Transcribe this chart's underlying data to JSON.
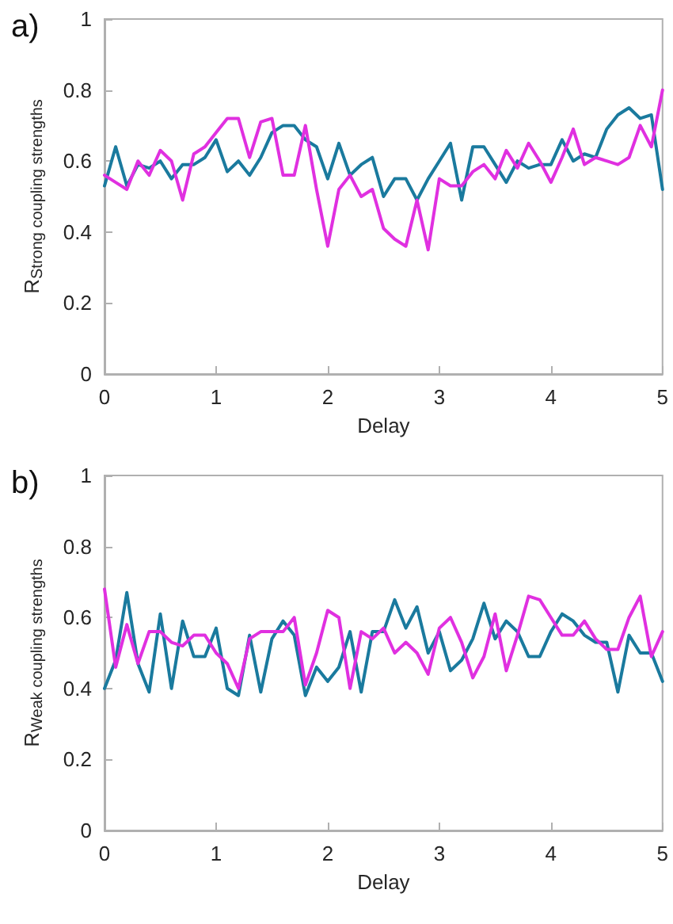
{
  "chart_data": [
    {
      "type": "line",
      "title": "a)",
      "xlabel": "Delay",
      "ylabel": "R$_{Strong coupling strengths}$",
      "xlim": [
        0,
        5
      ],
      "ylim": [
        0,
        1
      ],
      "xticks": [
        0,
        1,
        2,
        3,
        4,
        5
      ],
      "yticks": [
        0,
        0.2,
        0.4,
        0.6,
        0.8,
        1
      ],
      "grid": false,
      "marker": "none",
      "line_style": "solid",
      "x": [
        0,
        0.1,
        0.2,
        0.3,
        0.4,
        0.5,
        0.6,
        0.7,
        0.8,
        0.9,
        1,
        1.1,
        1.2,
        1.3,
        1.4,
        1.5,
        1.6,
        1.7,
        1.8,
        1.9,
        2,
        2.1,
        2.2,
        2.3,
        2.4,
        2.5,
        2.6,
        2.7,
        2.8,
        2.9,
        3,
        3.1,
        3.2,
        3.3,
        3.4,
        3.5,
        3.6,
        3.7,
        3.8,
        3.9,
        4,
        4.1,
        4.2,
        4.3,
        4.4,
        4.5,
        4.6,
        4.7,
        4.8,
        4.9,
        5
      ],
      "series": [
        {
          "color": "#1a7a9e",
          "values": [
            0.53,
            0.64,
            0.53,
            0.59,
            0.58,
            0.6,
            0.55,
            0.59,
            0.59,
            0.61,
            0.66,
            0.57,
            0.6,
            0.56,
            0.61,
            0.68,
            0.7,
            0.7,
            0.66,
            0.64,
            0.55,
            0.65,
            0.56,
            0.59,
            0.61,
            0.5,
            0.55,
            0.55,
            0.49,
            0.55,
            0.6,
            0.65,
            0.49,
            0.64,
            0.64,
            0.59,
            0.54,
            0.6,
            0.58,
            0.59,
            0.59,
            0.66,
            0.6,
            0.62,
            0.61,
            0.69,
            0.73,
            0.75,
            0.72,
            0.73,
            0.52
          ]
        },
        {
          "color": "#e030e0",
          "values": [
            0.56,
            0.54,
            0.52,
            0.6,
            0.56,
            0.63,
            0.6,
            0.49,
            0.62,
            0.64,
            0.68,
            0.72,
            0.72,
            0.61,
            0.71,
            0.72,
            0.56,
            0.56,
            0.7,
            0.52,
            0.36,
            0.52,
            0.56,
            0.5,
            0.52,
            0.41,
            0.38,
            0.36,
            0.49,
            0.35,
            0.55,
            0.53,
            0.53,
            0.57,
            0.59,
            0.55,
            0.63,
            0.58,
            0.65,
            0.6,
            0.54,
            0.61,
            0.69,
            0.59,
            0.61,
            0.6,
            0.59,
            0.61,
            0.7,
            0.64,
            0.8
          ]
        }
      ]
    },
    {
      "type": "line",
      "title": "b)",
      "xlabel": "Delay",
      "ylabel": "R$_{Weak coupling strengths}$",
      "xlim": [
        0,
        5
      ],
      "ylim": [
        0,
        1
      ],
      "xticks": [
        0,
        1,
        2,
        3,
        4,
        5
      ],
      "yticks": [
        0,
        0.2,
        0.4,
        0.6,
        0.8,
        1
      ],
      "grid": false,
      "marker": "none",
      "line_style": "solid",
      "x": [
        0,
        0.1,
        0.2,
        0.3,
        0.4,
        0.5,
        0.6,
        0.7,
        0.8,
        0.9,
        1,
        1.1,
        1.2,
        1.3,
        1.4,
        1.5,
        1.6,
        1.7,
        1.8,
        1.9,
        2,
        2.1,
        2.2,
        2.3,
        2.4,
        2.5,
        2.6,
        2.7,
        2.8,
        2.9,
        3,
        3.1,
        3.2,
        3.3,
        3.4,
        3.5,
        3.6,
        3.7,
        3.8,
        3.9,
        4,
        4.1,
        4.2,
        4.3,
        4.4,
        4.5,
        4.6,
        4.7,
        4.8,
        4.9,
        5
      ],
      "series": [
        {
          "color": "#1a7a9e",
          "values": [
            0.4,
            0.48,
            0.67,
            0.47,
            0.39,
            0.61,
            0.4,
            0.59,
            0.49,
            0.49,
            0.57,
            0.4,
            0.38,
            0.55,
            0.39,
            0.54,
            0.59,
            0.55,
            0.38,
            0.46,
            0.42,
            0.46,
            0.56,
            0.39,
            0.56,
            0.56,
            0.65,
            0.57,
            0.63,
            0.5,
            0.56,
            0.45,
            0.48,
            0.54,
            0.64,
            0.54,
            0.59,
            0.56,
            0.49,
            0.49,
            0.56,
            0.61,
            0.59,
            0.55,
            0.53,
            0.53,
            0.39,
            0.55,
            0.5,
            0.5,
            0.42
          ]
        },
        {
          "color": "#e030e0",
          "values": [
            0.68,
            0.46,
            0.58,
            0.47,
            0.56,
            0.56,
            0.53,
            0.52,
            0.55,
            0.55,
            0.5,
            0.47,
            0.4,
            0.54,
            0.56,
            0.56,
            0.56,
            0.6,
            0.41,
            0.5,
            0.62,
            0.6,
            0.4,
            0.56,
            0.54,
            0.57,
            0.5,
            0.53,
            0.5,
            0.44,
            0.57,
            0.6,
            0.53,
            0.43,
            0.49,
            0.61,
            0.45,
            0.55,
            0.66,
            0.65,
            0.6,
            0.55,
            0.55,
            0.59,
            0.54,
            0.51,
            0.51,
            0.6,
            0.66,
            0.49,
            0.56
          ]
        }
      ]
    }
  ]
}
